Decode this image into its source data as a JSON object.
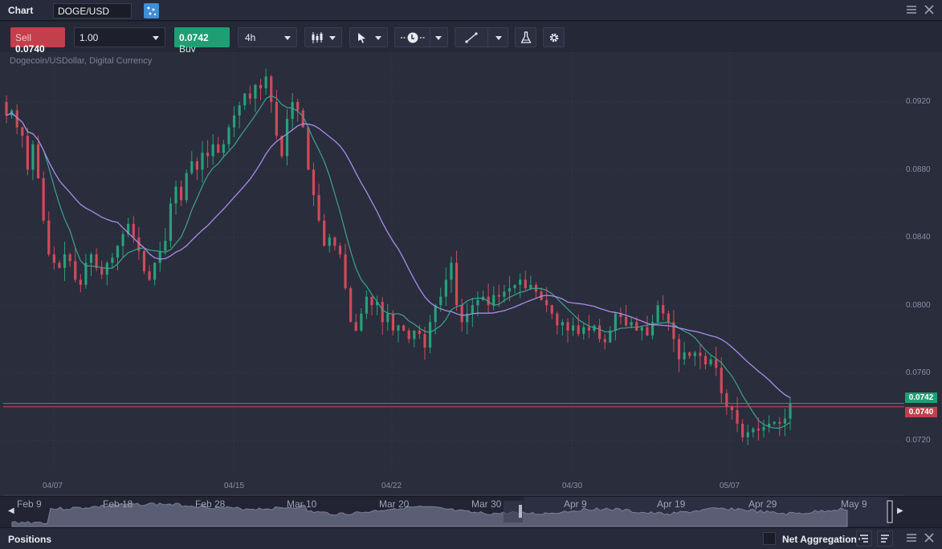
{
  "window": {
    "title": "Chart",
    "symbol": "DOGE/USD"
  },
  "toolbar": {
    "sell_label": "Sell",
    "sell_price": "0.0740",
    "quantity": "1.00",
    "buy_price": "0.0742",
    "buy_label": "Buy",
    "timeframe": "4h"
  },
  "chart": {
    "instrument": "Dogecoin/USDollar, Digital Currency",
    "y_labels": [
      "0.0920",
      "0.0880",
      "0.0840",
      "0.0800",
      "0.0760",
      "0.0720"
    ],
    "x_labels": [
      "04/07",
      "04/15",
      "04/22",
      "04/30",
      "05/07"
    ],
    "buy_tag": "0.0742",
    "sell_tag": "0.0740",
    "colors": {
      "up": "#26a17b",
      "down": "#d04a5a",
      "ma_fast": "#3ca38f",
      "ma_slow": "#a98ce8",
      "buy_line": "#26a17b",
      "sell_line": "#d04a5a"
    }
  },
  "navigator": {
    "labels": [
      "Feb 9",
      "Feb 18",
      "Feb 28",
      "Mar 10",
      "Mar 20",
      "Mar 30",
      "Apr 9",
      "Apr 19",
      "Apr 29",
      "May 9"
    ]
  },
  "positions": {
    "title": "Positions",
    "net_aggregation": "Net Aggregation"
  },
  "chart_data": {
    "type": "candlestick",
    "title": "Dogecoin/USDollar, Digital Currency",
    "ylim": [
      0.0705,
      0.0945
    ],
    "y_ticks": [
      0.092,
      0.088,
      0.084,
      0.08,
      0.076,
      0.072
    ],
    "x_ticks": [
      "04/07",
      "04/15",
      "04/22",
      "04/30",
      "05/07"
    ],
    "bid": 0.074,
    "ask": 0.0742,
    "close_path": [
      0.0912,
      0.0915,
      0.0905,
      0.09,
      0.088,
      0.0895,
      0.0875,
      0.085,
      0.083,
      0.0825,
      0.0822,
      0.083,
      0.0826,
      0.0815,
      0.0812,
      0.0825,
      0.083,
      0.0822,
      0.0818,
      0.0825,
      0.0828,
      0.0835,
      0.0842,
      0.0848,
      0.084,
      0.0832,
      0.082,
      0.0815,
      0.0825,
      0.0832,
      0.0838,
      0.086,
      0.087,
      0.0862,
      0.0878,
      0.0885,
      0.088,
      0.089,
      0.0888,
      0.0895,
      0.089,
      0.0895,
      0.0905,
      0.0912,
      0.0918,
      0.0925,
      0.0922,
      0.093,
      0.0928,
      0.0935,
      0.092,
      0.09,
      0.0888,
      0.091,
      0.092,
      0.0915,
      0.0905,
      0.088,
      0.0865,
      0.085,
      0.0835,
      0.084,
      0.0835,
      0.083,
      0.081,
      0.079,
      0.0785,
      0.0795,
      0.0805,
      0.08,
      0.0802,
      0.079,
      0.0795,
      0.0785,
      0.0788,
      0.0785,
      0.078,
      0.0785,
      0.0783,
      0.0775,
      0.079,
      0.08,
      0.0805,
      0.0815,
      0.0825,
      0.08,
      0.079,
      0.0795,
      0.08,
      0.0803,
      0.0805,
      0.08,
      0.0806,
      0.0805,
      0.0808,
      0.081,
      0.0812,
      0.0815,
      0.081,
      0.0812,
      0.0808,
      0.0803,
      0.08,
      0.0795,
      0.0788,
      0.079,
      0.0785,
      0.0788,
      0.0783,
      0.0787,
      0.0785,
      0.0788,
      0.078,
      0.0778,
      0.0785,
      0.0795,
      0.0793,
      0.0788,
      0.079,
      0.0785,
      0.0787,
      0.0782,
      0.079,
      0.08,
      0.0795,
      0.079,
      0.078,
      0.0768,
      0.0772,
      0.077,
      0.0772,
      0.077,
      0.0765,
      0.0768,
      0.0763,
      0.0748,
      0.074,
      0.0738,
      0.073,
      0.0722,
      0.0725,
      0.0727,
      0.0726,
      0.0728,
      0.073,
      0.0731,
      0.073,
      0.0733,
      0.0742
    ],
    "series": [
      {
        "name": "",
        "kind": "moving-average-fast"
      },
      {
        "name": "",
        "kind": "moving-average-slow"
      }
    ],
    "grid": true
  }
}
